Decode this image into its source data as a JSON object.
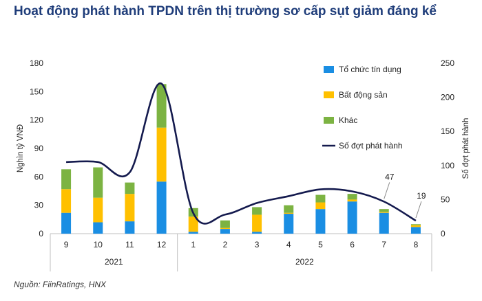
{
  "title": "Hoạt động phát hành TPDN trên thị trường sơ cấp sụt giảm đáng kể",
  "source": "Nguồn: FiinRatings, HNX",
  "chart_data": {
    "type": "bar",
    "stacked": true,
    "categories": [
      "9",
      "10",
      "11",
      "12",
      "1",
      "2",
      "3",
      "4",
      "5",
      "6",
      "7",
      "8"
    ],
    "year_groups": [
      {
        "label": "2021",
        "count": 4
      },
      {
        "label": "2022",
        "count": 8
      }
    ],
    "series": [
      {
        "name": "Tổ chức tín dụng",
        "color": "#1a8ee3",
        "values": [
          22,
          12,
          13,
          55,
          2,
          5,
          2,
          21,
          26,
          34,
          22,
          7
        ]
      },
      {
        "name": "Bất động sản",
        "color": "#ffc000",
        "values": [
          25,
          26,
          29,
          57,
          16,
          1,
          18,
          1,
          7,
          2,
          1,
          2
        ]
      },
      {
        "name": "Khác",
        "color": "#7cb342",
        "values": [
          21,
          32,
          12,
          46,
          9,
          8,
          8,
          8,
          8,
          6,
          3,
          1
        ]
      }
    ],
    "line": {
      "name": "Số đợt phát hành",
      "color": "#141a4e",
      "axis": "right",
      "values": [
        105,
        105,
        90,
        220,
        30,
        28,
        45,
        55,
        65,
        62,
        47,
        19
      ],
      "labels": [
        "",
        "",
        "",
        "",
        "",
        "",
        "",
        "",
        "",
        "",
        "47",
        "19"
      ]
    },
    "ylabel_left": "Nghìn tỷ VNĐ",
    "ylabel_right": "Số đợt phát hành",
    "ylim_left": [
      0,
      180
    ],
    "yticks_left": [
      "0",
      "30",
      "60",
      "90",
      "120",
      "150",
      "180"
    ],
    "ylim_right": [
      0,
      250
    ],
    "yticks_right": [
      "0",
      "50",
      "100",
      "150",
      "200",
      "250"
    ],
    "legend_position": "right",
    "grid": false
  }
}
